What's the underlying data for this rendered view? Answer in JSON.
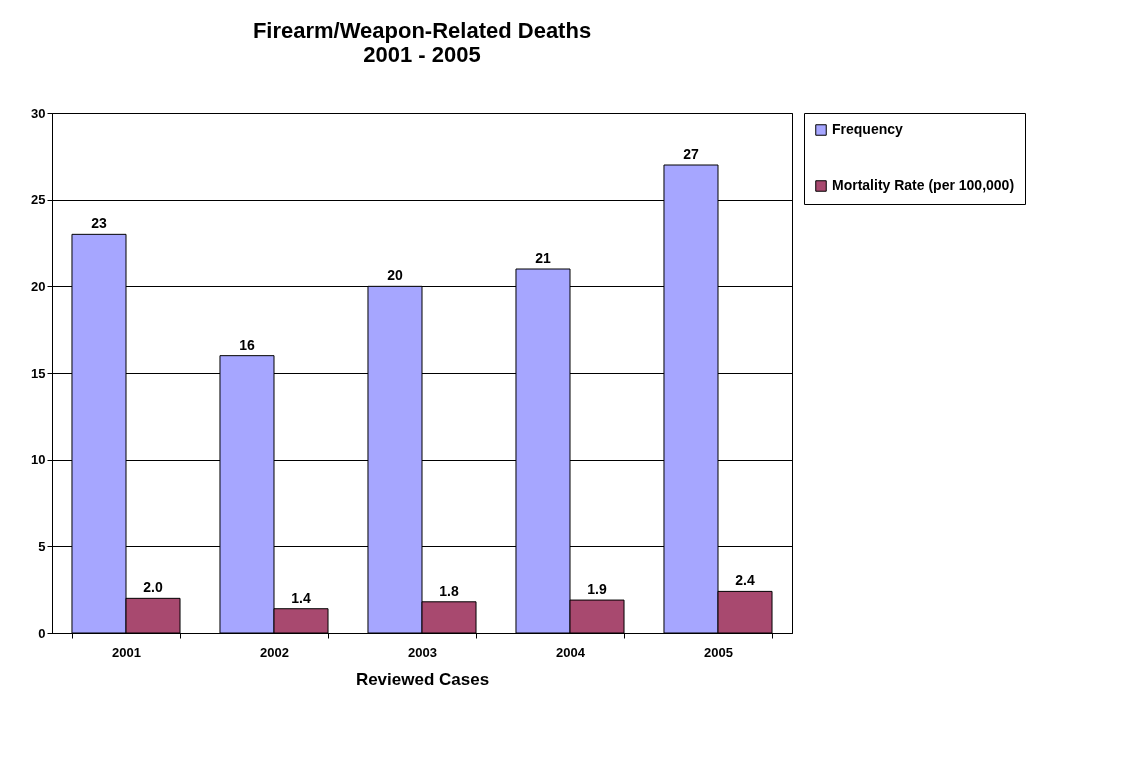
{
  "chart_data": {
    "type": "bar",
    "title": "Firearm/Weapon-Related Deaths\n2001 - 2005",
    "xlabel": "Reviewed Cases",
    "categories": [
      "2001",
      "2002",
      "2003",
      "2004",
      "2005"
    ],
    "series": [
      {
        "name": "Frequency",
        "color": "#a6a6ff",
        "values": [
          23,
          16,
          20,
          21,
          27
        ],
        "value_labels": [
          "23",
          "16",
          "20",
          "21",
          "27"
        ]
      },
      {
        "name": "Mortality Rate (per 100,000)",
        "color": "#a8496f",
        "values": [
          2.0,
          1.4,
          1.8,
          1.9,
          2.4
        ],
        "value_labels": [
          "2.0",
          "1.4",
          "1.8",
          "1.9",
          "2.4"
        ]
      }
    ],
    "ylim": [
      0,
      30
    ],
    "yticks": [
      0,
      5,
      10,
      15,
      20,
      25,
      30
    ],
    "grid": "y",
    "legend": "right"
  }
}
